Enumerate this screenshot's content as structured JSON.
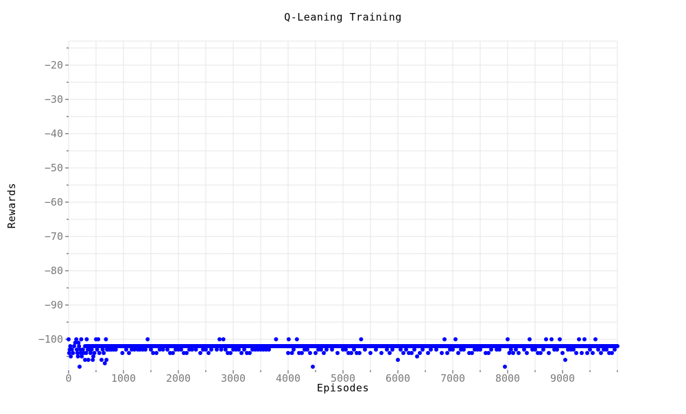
{
  "chart_data": {
    "type": "scatter",
    "title": "Q-Leaning Training",
    "xlabel": "Episodes",
    "ylabel": "Rewards",
    "xlim": [
      0,
      10000
    ],
    "ylim": [
      -109,
      -13
    ],
    "x_ticks": [
      0,
      1000,
      2000,
      3000,
      4000,
      5000,
      6000,
      7000,
      8000,
      9000
    ],
    "y_ticks": [
      -100,
      -90,
      -80,
      -70,
      -60,
      -50,
      -40,
      -30,
      -20
    ],
    "grid": true,
    "marker_color": "#0000ff",
    "baseline": {
      "x_start": 300,
      "x_end": 10000,
      "value": -102
    },
    "series": [
      {
        "points": [
          [
            0,
            -100
          ],
          [
            10,
            -104
          ],
          [
            20,
            -103
          ],
          [
            30,
            -102
          ],
          [
            40,
            -105
          ],
          [
            60,
            -103
          ],
          [
            80,
            -104
          ],
          [
            100,
            -102
          ],
          [
            120,
            -101
          ],
          [
            140,
            -100
          ],
          [
            150,
            -103
          ],
          [
            160,
            -104
          ],
          [
            170,
            -105
          ],
          [
            180,
            -101
          ],
          [
            190,
            -102
          ],
          [
            200,
            -108
          ],
          [
            210,
            -103
          ],
          [
            220,
            -104
          ],
          [
            230,
            -100
          ],
          [
            240,
            -105
          ],
          [
            260,
            -103
          ],
          [
            280,
            -104
          ],
          [
            300,
            -106
          ],
          [
            320,
            -104
          ],
          [
            330,
            -100
          ],
          [
            350,
            -103
          ],
          [
            360,
            -106
          ],
          [
            380,
            -103
          ],
          [
            400,
            -104
          ],
          [
            420,
            -103
          ],
          [
            440,
            -106
          ],
          [
            450,
            -105
          ],
          [
            470,
            -104
          ],
          [
            500,
            -100
          ],
          [
            520,
            -103
          ],
          [
            540,
            -100
          ],
          [
            560,
            -104
          ],
          [
            580,
            -102
          ],
          [
            600,
            -106
          ],
          [
            620,
            -103
          ],
          [
            640,
            -104
          ],
          [
            660,
            -107
          ],
          [
            680,
            -100
          ],
          [
            690,
            -106
          ],
          [
            700,
            -103
          ],
          [
            720,
            -103
          ],
          [
            750,
            -103
          ],
          [
            780,
            -103
          ],
          [
            820,
            -103
          ],
          [
            860,
            -103
          ],
          [
            900,
            -102
          ],
          [
            980,
            -104
          ],
          [
            1050,
            -103
          ],
          [
            1100,
            -104
          ],
          [
            1150,
            -103
          ],
          [
            1200,
            -103
          ],
          [
            1260,
            -103
          ],
          [
            1300,
            -103
          ],
          [
            1350,
            -103
          ],
          [
            1400,
            -103
          ],
          [
            1440,
            -100
          ],
          [
            1500,
            -103
          ],
          [
            1540,
            -104
          ],
          [
            1600,
            -104
          ],
          [
            1660,
            -103
          ],
          [
            1720,
            -103
          ],
          [
            1800,
            -103
          ],
          [
            1850,
            -104
          ],
          [
            1900,
            -104
          ],
          [
            1950,
            -103
          ],
          [
            2000,
            -103
          ],
          [
            2050,
            -103
          ],
          [
            2100,
            -104
          ],
          [
            2150,
            -104
          ],
          [
            2200,
            -103
          ],
          [
            2250,
            -103
          ],
          [
            2320,
            -103
          ],
          [
            2400,
            -104
          ],
          [
            2450,
            -103
          ],
          [
            2500,
            -103
          ],
          [
            2550,
            -104
          ],
          [
            2600,
            -103
          ],
          [
            2700,
            -103
          ],
          [
            2750,
            -100
          ],
          [
            2780,
            -103
          ],
          [
            2820,
            -100
          ],
          [
            2860,
            -103
          ],
          [
            2900,
            -104
          ],
          [
            2950,
            -104
          ],
          [
            3000,
            -103
          ],
          [
            3050,
            -103
          ],
          [
            3100,
            -103
          ],
          [
            3150,
            -104
          ],
          [
            3200,
            -103
          ],
          [
            3250,
            -104
          ],
          [
            3300,
            -104
          ],
          [
            3350,
            -103
          ],
          [
            3400,
            -103
          ],
          [
            3450,
            -103
          ],
          [
            3500,
            -103
          ],
          [
            3550,
            -103
          ],
          [
            3600,
            -103
          ],
          [
            3650,
            -103
          ],
          [
            3780,
            -100
          ],
          [
            4000,
            -104
          ],
          [
            4010,
            -100
          ],
          [
            4070,
            -104
          ],
          [
            4100,
            -103
          ],
          [
            4160,
            -100
          ],
          [
            4200,
            -104
          ],
          [
            4250,
            -104
          ],
          [
            4300,
            -103
          ],
          [
            4350,
            -103
          ],
          [
            4400,
            -104
          ],
          [
            4450,
            -108
          ],
          [
            4500,
            -104
          ],
          [
            4550,
            -103
          ],
          [
            4600,
            -103
          ],
          [
            4650,
            -104
          ],
          [
            4700,
            -103
          ],
          [
            4800,
            -103
          ],
          [
            4900,
            -104
          ],
          [
            5000,
            -103
          ],
          [
            5050,
            -103
          ],
          [
            5100,
            -104
          ],
          [
            5150,
            -104
          ],
          [
            5200,
            -103
          ],
          [
            5250,
            -104
          ],
          [
            5300,
            -104
          ],
          [
            5330,
            -100
          ],
          [
            5400,
            -103
          ],
          [
            5500,
            -104
          ],
          [
            5600,
            -103
          ],
          [
            5700,
            -104
          ],
          [
            5800,
            -103
          ],
          [
            5850,
            -104
          ],
          [
            5900,
            -103
          ],
          [
            6000,
            -106
          ],
          [
            6050,
            -103
          ],
          [
            6100,
            -104
          ],
          [
            6150,
            -103
          ],
          [
            6200,
            -104
          ],
          [
            6250,
            -104
          ],
          [
            6300,
            -103
          ],
          [
            6350,
            -105
          ],
          [
            6400,
            -104
          ],
          [
            6450,
            -103
          ],
          [
            6550,
            -104
          ],
          [
            6600,
            -103
          ],
          [
            6700,
            -103
          ],
          [
            6800,
            -104
          ],
          [
            6850,
            -100
          ],
          [
            6900,
            -104
          ],
          [
            6950,
            -103
          ],
          [
            7000,
            -103
          ],
          [
            7050,
            -100
          ],
          [
            7100,
            -104
          ],
          [
            7150,
            -103
          ],
          [
            7200,
            -103
          ],
          [
            7300,
            -104
          ],
          [
            7350,
            -104
          ],
          [
            7400,
            -103
          ],
          [
            7450,
            -103
          ],
          [
            7500,
            -103
          ],
          [
            7600,
            -104
          ],
          [
            7650,
            -104
          ],
          [
            7700,
            -103
          ],
          [
            7800,
            -103
          ],
          [
            7850,
            -103
          ],
          [
            7950,
            -108
          ],
          [
            8000,
            -100
          ],
          [
            8030,
            -104
          ],
          [
            8060,
            -103
          ],
          [
            8100,
            -104
          ],
          [
            8150,
            -103
          ],
          [
            8200,
            -104
          ],
          [
            8300,
            -103
          ],
          [
            8350,
            -104
          ],
          [
            8400,
            -100
          ],
          [
            8450,
            -103
          ],
          [
            8500,
            -103
          ],
          [
            8550,
            -104
          ],
          [
            8600,
            -104
          ],
          [
            8650,
            -103
          ],
          [
            8700,
            -100
          ],
          [
            8750,
            -104
          ],
          [
            8800,
            -100
          ],
          [
            8850,
            -103
          ],
          [
            8900,
            -103
          ],
          [
            8950,
            -100
          ],
          [
            9000,
            -104
          ],
          [
            9050,
            -106
          ],
          [
            9100,
            -103
          ],
          [
            9150,
            -103
          ],
          [
            9200,
            -103
          ],
          [
            9250,
            -104
          ],
          [
            9300,
            -100
          ],
          [
            9350,
            -104
          ],
          [
            9400,
            -100
          ],
          [
            9450,
            -104
          ],
          [
            9500,
            -103
          ],
          [
            9550,
            -104
          ],
          [
            9600,
            -100
          ],
          [
            9650,
            -103
          ],
          [
            9700,
            -104
          ],
          [
            9750,
            -103
          ],
          [
            9800,
            -103
          ],
          [
            9850,
            -104
          ],
          [
            9900,
            -104
          ],
          [
            9950,
            -103
          ],
          [
            10000,
            -102
          ]
        ]
      }
    ]
  }
}
